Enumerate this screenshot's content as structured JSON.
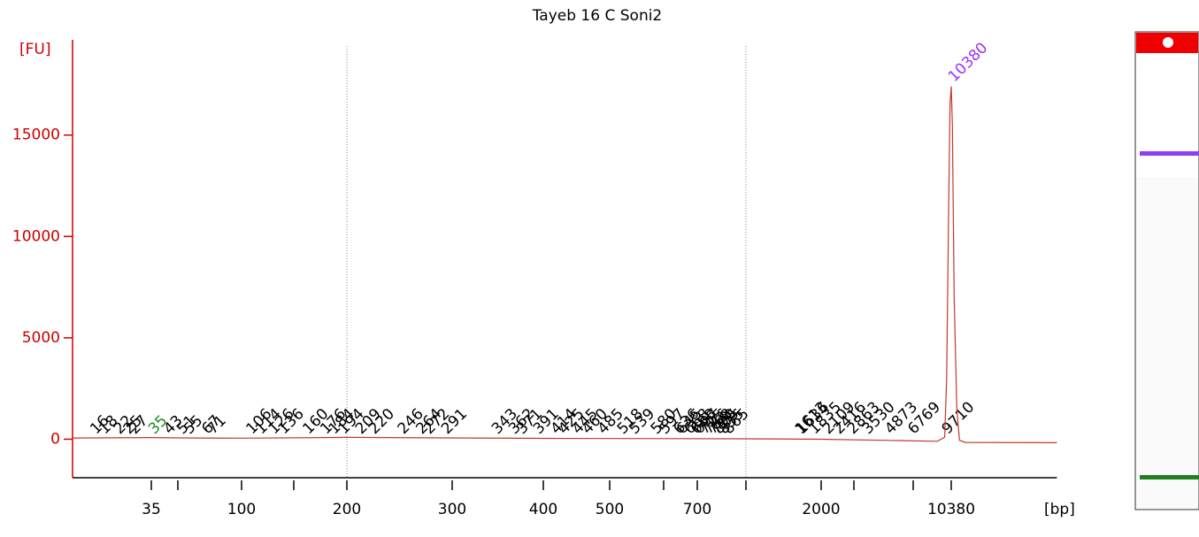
{
  "chart_data": {
    "type": "line",
    "title": "Tayeb 16 C Soni2",
    "ylabel": "[FU]",
    "xlabel": "[bp]",
    "x": [
      12,
      20,
      35,
      60,
      100,
      200,
      400,
      1000,
      2000,
      5000,
      9000,
      9700,
      9900,
      10100,
      10250,
      10380,
      10500,
      10700,
      11000,
      11300,
      12000,
      31000
    ],
    "values": [
      60,
      70,
      80,
      60,
      50,
      90,
      40,
      20,
      0,
      -60,
      -100,
      100,
      3000,
      11000,
      16500,
      17400,
      15500,
      7000,
      1500,
      -50,
      -160,
      -170
    ],
    "color": "#c0392b",
    "ylim": [
      -1900,
      19700
    ],
    "yticks": [
      0,
      5000,
      10000,
      15000
    ],
    "xlim": [
      12,
      31000
    ],
    "xticks": [
      35,
      {
        "value": 50,
        "label": null
      },
      100,
      {
        "value": 150,
        "label": null
      },
      200,
      300,
      400,
      500,
      {
        "value": 600,
        "label": null
      },
      700,
      {
        "value": 1000,
        "label": null
      },
      2000,
      {
        "value": 3000,
        "label": null
      },
      {
        "value": 7000,
        "label": null
      },
      10380
    ],
    "region": [
      200,
      1000
    ],
    "peaks": [
      16,
      18,
      22,
      25,
      27,
      43,
      51,
      55,
      67,
      71,
      106,
      114,
      126,
      136,
      160,
      176,
      184,
      194,
      209,
      220,
      246,
      264,
      272,
      291,
      343,
      362,
      371,
      391,
      414,
      425,
      445,
      460,
      485,
      518,
      539,
      580,
      597,
      636,
      645,
      668,
      688,
      697,
      725,
      746,
      768,
      790,
      805,
      835,
      865,
      1613,
      1636,
      1835,
      2109,
      2416,
      2863,
      3530,
      4873,
      6769,
      9710
    ],
    "lower_marker": {
      "size": 35,
      "color": "#1e8c1e"
    },
    "upper_marker": {
      "size": 10380,
      "color": "#9b30ff"
    }
  }
}
